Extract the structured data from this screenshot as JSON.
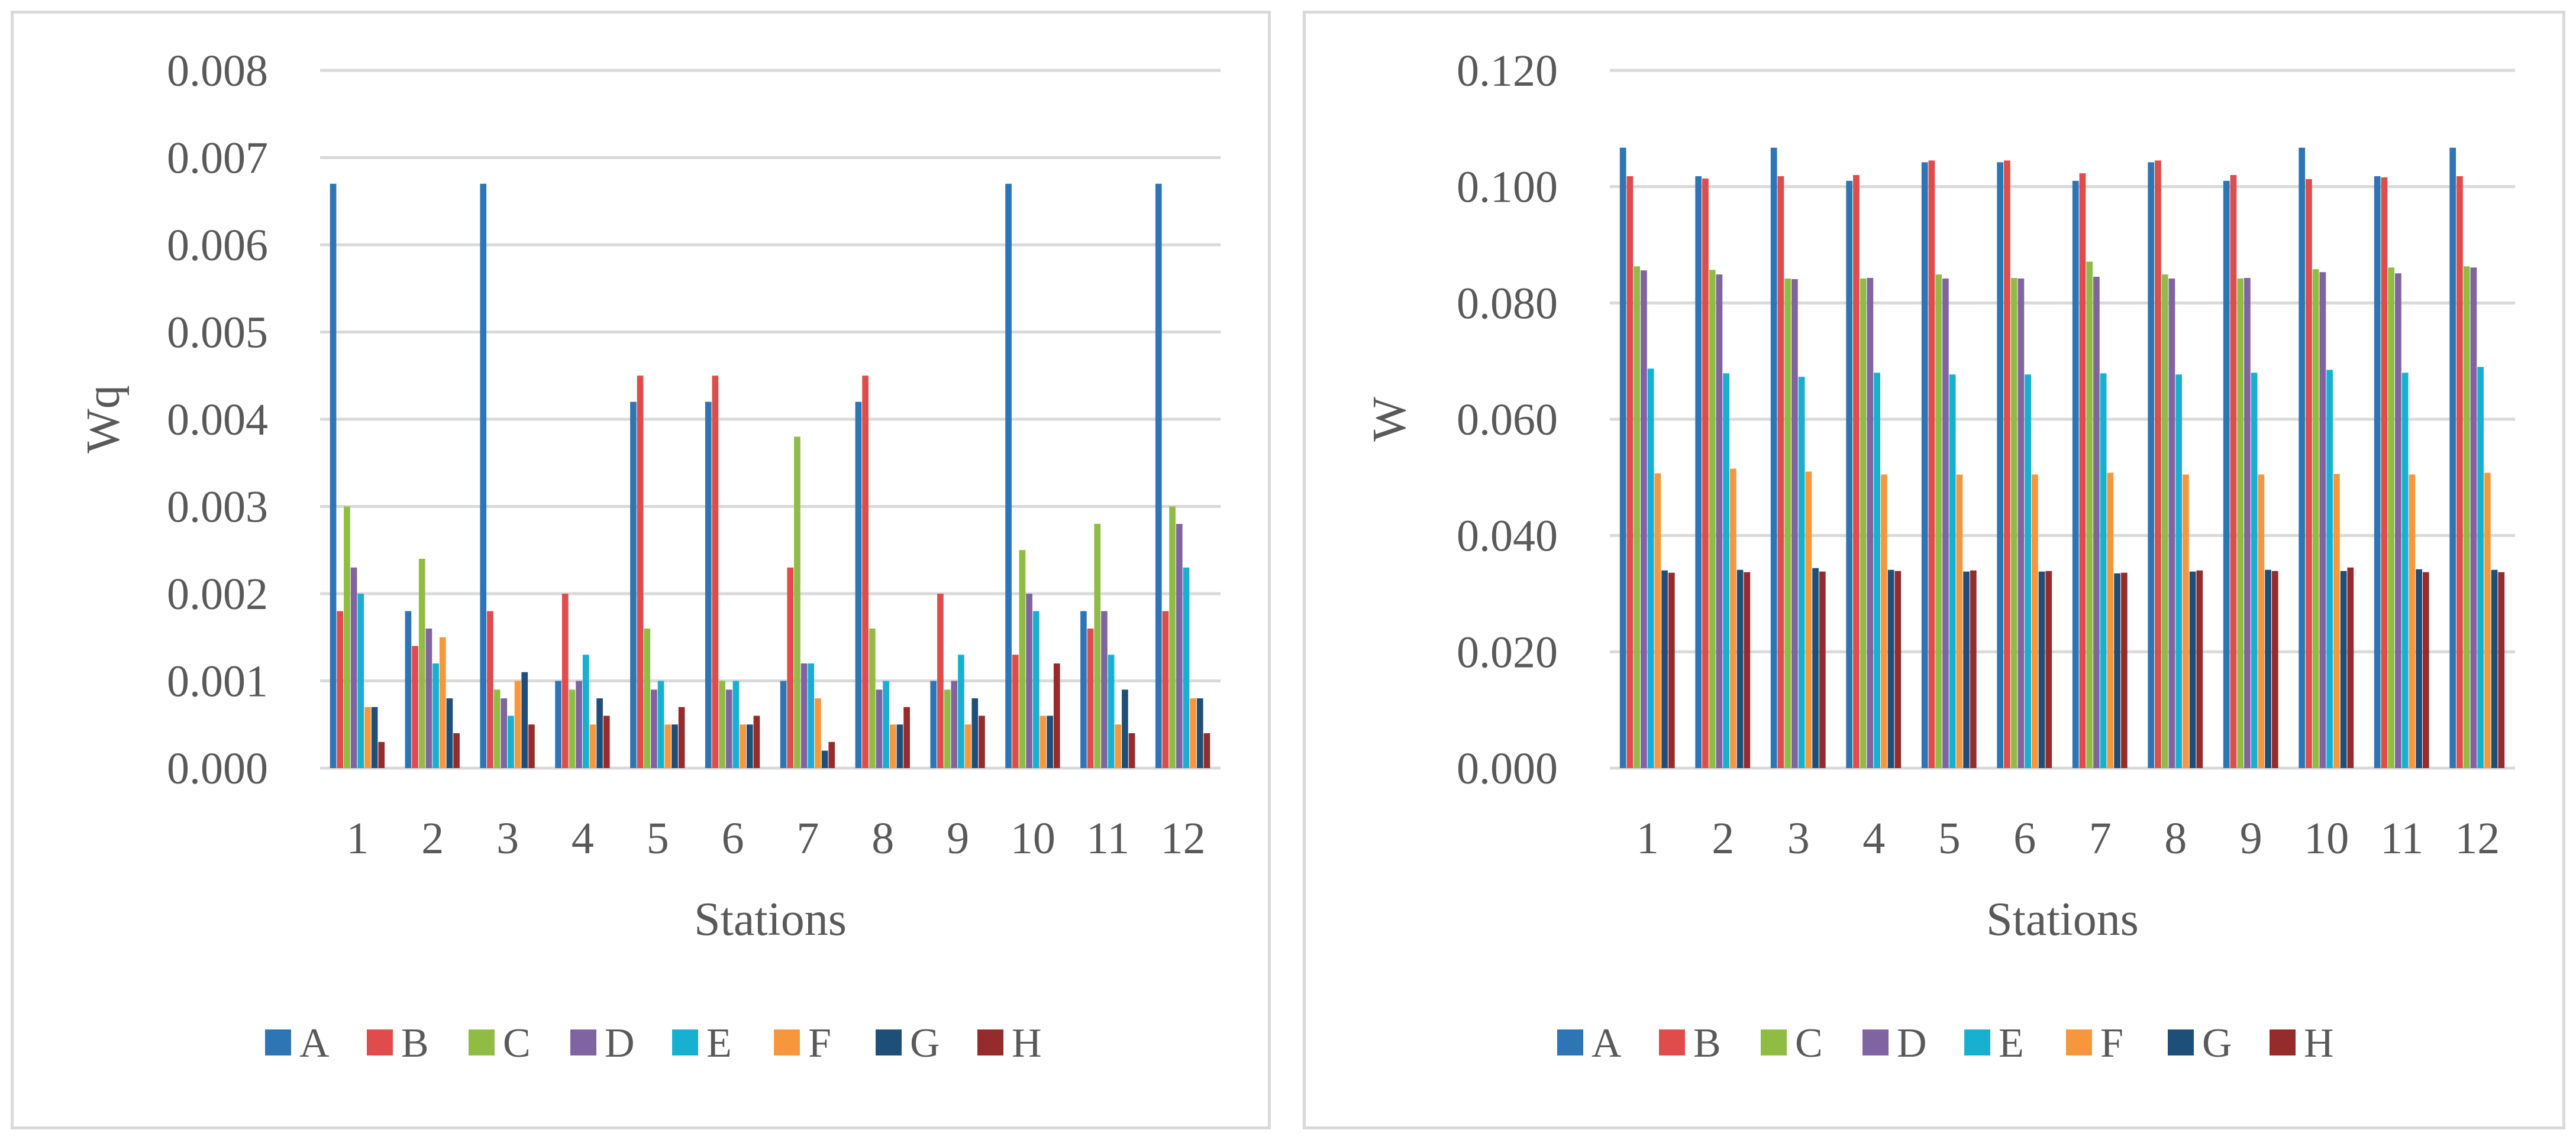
{
  "chart_data": [
    {
      "type": "bar",
      "ylabel": "Wq",
      "xlabel": "Stations",
      "ylim": [
        0,
        0.008
      ],
      "yticks": [
        "0.000",
        "0.001",
        "0.002",
        "0.003",
        "0.004",
        "0.005",
        "0.006",
        "0.007",
        "0.008"
      ],
      "categories": [
        "1",
        "2",
        "3",
        "4",
        "5",
        "6",
        "7",
        "8",
        "9",
        "10",
        "11",
        "12"
      ],
      "legend_position": "bottom",
      "grid": true,
      "series": [
        {
          "name": "A",
          "color": "#2e75b6",
          "values": [
            0.0067,
            0.0018,
            0.0067,
            0.001,
            0.0042,
            0.0042,
            0.001,
            0.0042,
            0.001,
            0.0067,
            0.0018,
            0.0067
          ]
        },
        {
          "name": "B",
          "color": "#e04b4b",
          "values": [
            0.0018,
            0.0014,
            0.0018,
            0.002,
            0.0045,
            0.0045,
            0.0023,
            0.0045,
            0.002,
            0.0013,
            0.0016,
            0.0018
          ]
        },
        {
          "name": "C",
          "color": "#8fbc45",
          "values": [
            0.003,
            0.0024,
            0.0009,
            0.0009,
            0.0016,
            0.001,
            0.0038,
            0.0016,
            0.0009,
            0.0025,
            0.0028,
            0.003
          ]
        },
        {
          "name": "D",
          "color": "#8064a2",
          "values": [
            0.0023,
            0.0016,
            0.0008,
            0.001,
            0.0009,
            0.0009,
            0.0012,
            0.0009,
            0.001,
            0.002,
            0.0018,
            0.0028
          ]
        },
        {
          "name": "E",
          "color": "#17b0d0",
          "values": [
            0.002,
            0.0012,
            0.0006,
            0.0013,
            0.001,
            0.001,
            0.0012,
            0.001,
            0.0013,
            0.0018,
            0.0013,
            0.0023
          ]
        },
        {
          "name": "F",
          "color": "#f6973e",
          "values": [
            0.0007,
            0.0015,
            0.001,
            0.0005,
            0.0005,
            0.0005,
            0.0008,
            0.0005,
            0.0005,
            0.0006,
            0.0005,
            0.0008
          ]
        },
        {
          "name": "G",
          "color": "#1f4e79",
          "values": [
            0.0007,
            0.0008,
            0.0011,
            0.0008,
            0.0005,
            0.0005,
            0.0002,
            0.0005,
            0.0008,
            0.0006,
            0.0009,
            0.0008
          ]
        },
        {
          "name": "H",
          "color": "#952b2b",
          "values": [
            0.0003,
            0.0004,
            0.0005,
            0.0006,
            0.0007,
            0.0006,
            0.0003,
            0.0007,
            0.0006,
            0.0012,
            0.0004,
            0.0004
          ]
        }
      ]
    },
    {
      "type": "bar",
      "ylabel": "W",
      "xlabel": "Stations",
      "ylim": [
        0,
        0.12
      ],
      "yticks": [
        "0.000",
        "0.020",
        "0.040",
        "0.060",
        "0.080",
        "0.100",
        "0.120"
      ],
      "categories": [
        "1",
        "2",
        "3",
        "4",
        "5",
        "6",
        "7",
        "8",
        "9",
        "10",
        "11",
        "12"
      ],
      "legend_position": "bottom",
      "grid": true,
      "series": [
        {
          "name": "A",
          "color": "#2e75b6",
          "values": [
            0.1067,
            0.1018,
            0.1067,
            0.101,
            0.1042,
            0.1042,
            0.101,
            0.1042,
            0.101,
            0.1067,
            0.1018,
            0.1067
          ]
        },
        {
          "name": "B",
          "color": "#e04b4b",
          "values": [
            0.1018,
            0.1014,
            0.1018,
            0.102,
            0.1045,
            0.1045,
            0.1023,
            0.1045,
            0.102,
            0.1013,
            0.1016,
            0.1018
          ]
        },
        {
          "name": "C",
          "color": "#8fbc45",
          "values": [
            0.0863,
            0.0857,
            0.0842,
            0.0842,
            0.0849,
            0.0843,
            0.0871,
            0.0849,
            0.0842,
            0.0858,
            0.0861,
            0.0863
          ]
        },
        {
          "name": "D",
          "color": "#8064a2",
          "values": [
            0.0856,
            0.0849,
            0.0841,
            0.0843,
            0.0842,
            0.0842,
            0.0845,
            0.0842,
            0.0843,
            0.0853,
            0.0851,
            0.0861
          ]
        },
        {
          "name": "E",
          "color": "#17b0d0",
          "values": [
            0.0687,
            0.0679,
            0.0673,
            0.068,
            0.0677,
            0.0677,
            0.0679,
            0.0677,
            0.068,
            0.0685,
            0.068,
            0.069
          ]
        },
        {
          "name": "F",
          "color": "#f6973e",
          "values": [
            0.0507,
            0.0515,
            0.051,
            0.0505,
            0.0505,
            0.0505,
            0.0508,
            0.0505,
            0.0505,
            0.0506,
            0.0505,
            0.0508
          ]
        },
        {
          "name": "G",
          "color": "#1f4e79",
          "values": [
            0.034,
            0.0341,
            0.0344,
            0.0341,
            0.0338,
            0.0338,
            0.0335,
            0.0338,
            0.0341,
            0.0339,
            0.0342,
            0.0341
          ]
        },
        {
          "name": "H",
          "color": "#952b2b",
          "values": [
            0.0336,
            0.0337,
            0.0338,
            0.0339,
            0.034,
            0.0339,
            0.0336,
            0.034,
            0.0339,
            0.0345,
            0.0337,
            0.0337
          ]
        }
      ]
    }
  ]
}
